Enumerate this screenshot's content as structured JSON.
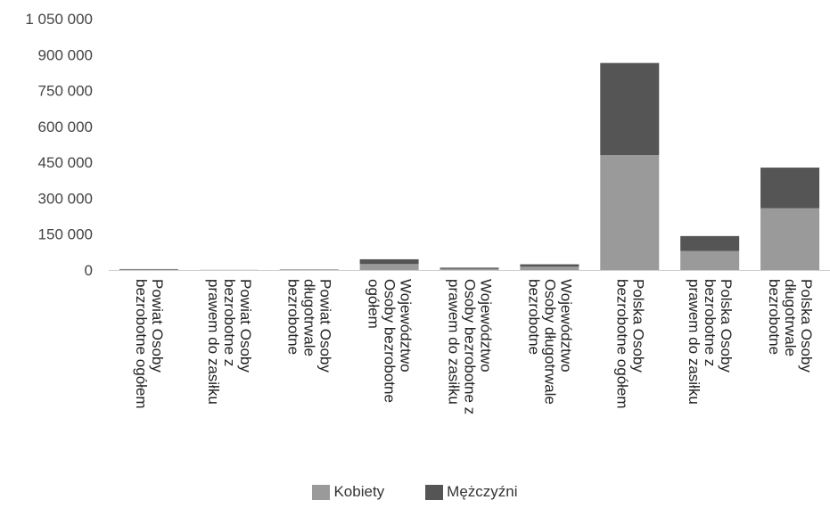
{
  "chart_data": {
    "type": "bar",
    "stacked": true,
    "title": "",
    "xlabel": "",
    "ylabel": "",
    "ylim": [
      0,
      1050000
    ],
    "yticks": [
      0,
      150000,
      300000,
      450000,
      600000,
      750000,
      900000,
      1050000
    ],
    "ytick_labels": [
      "0",
      "150 000",
      "300 000",
      "450 000",
      "600 000",
      "750 000",
      "900 000",
      "1 050 000"
    ],
    "grid": false,
    "legend_position": "bottom",
    "categories": [
      [
        "Powiat Osoby",
        "bezrobotne ogółem"
      ],
      [
        "Powiat Osoby",
        "bezrobotne z",
        "prawem do zasiłku"
      ],
      [
        "Powiat Osoby",
        "długotrwale",
        "bezrobotne"
      ],
      [
        "Województwo",
        "Osoby bezrobotne",
        "ogółem"
      ],
      [
        "Województwo",
        "Osoby bezrobotne z",
        "prawem do zasiłku"
      ],
      [
        "Województwo",
        "Osoby długotrwale",
        "bezrobotne"
      ],
      [
        "Polska Osoby",
        "bezrobotne ogółem"
      ],
      [
        "Polska Osoby",
        "bezrobotne z",
        "prawem do zasiłku"
      ],
      [
        "Polska Osoby",
        "długotrwale",
        "bezrobotne"
      ]
    ],
    "series": [
      {
        "name": "Kobiety",
        "color": "#9a9a9a",
        "values": [
          2000,
          300,
          1300,
          25000,
          5000,
          14000,
          480000,
          80000,
          258000
        ]
      },
      {
        "name": "Mężczyźni",
        "color": "#555555",
        "values": [
          2000,
          300,
          1200,
          20000,
          5000,
          10000,
          385000,
          62000,
          170000
        ]
      }
    ]
  },
  "legend": {
    "items": [
      {
        "label": "Kobiety",
        "color": "#9a9a9a"
      },
      {
        "label": "Mężczyźni",
        "color": "#555555"
      }
    ]
  }
}
